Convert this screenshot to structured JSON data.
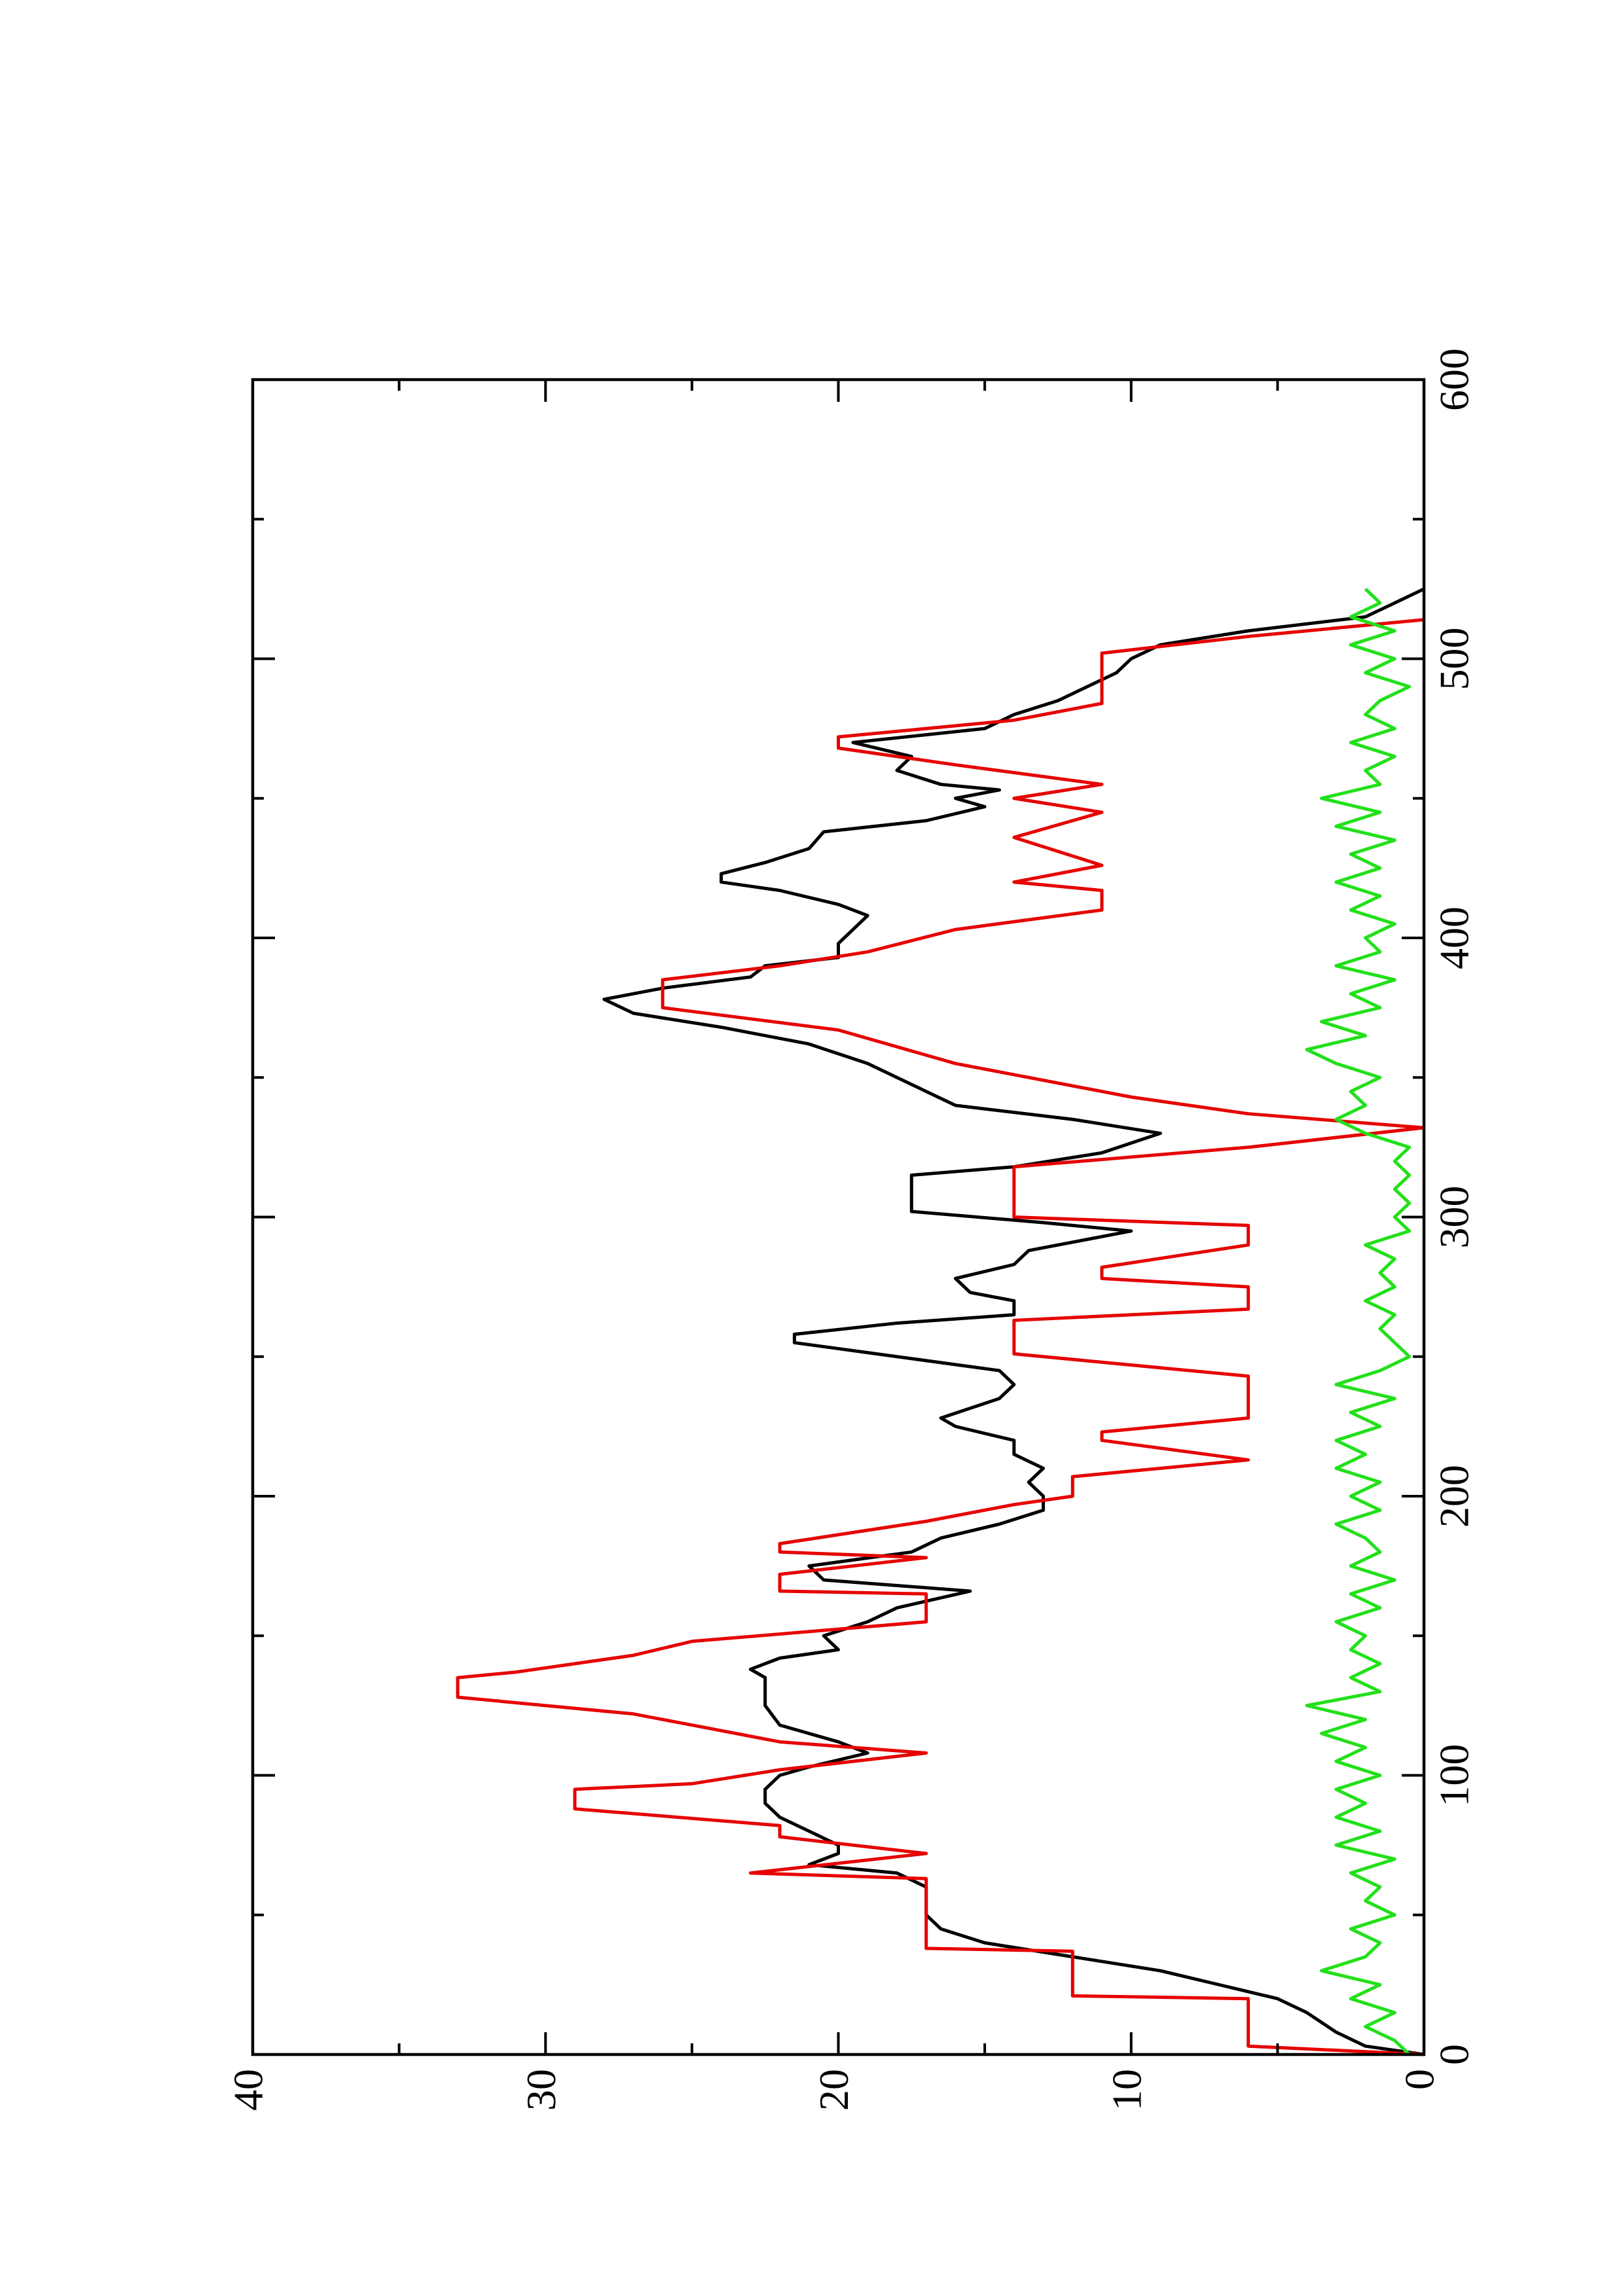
{
  "chart_data": {
    "type": "line",
    "xlim": [
      0,
      600
    ],
    "xticks": [
      0,
      100,
      200,
      300,
      400,
      500,
      600
    ],
    "ylim": [
      0,
      40
    ],
    "yticks": [
      0,
      10,
      20,
      30,
      40
    ],
    "rotated": true,
    "series": [
      {
        "color": "#000000",
        "x": [
          0,
          3,
          8,
          15,
          20,
          25,
          30,
          35,
          40,
          45,
          50,
          60,
          65,
          68,
          72,
          75,
          80,
          85,
          90,
          95,
          100,
          103,
          108,
          112,
          118,
          125,
          130,
          135,
          138,
          142,
          145,
          150,
          155,
          160,
          166,
          168,
          170,
          175,
          180,
          185,
          190,
          195,
          200,
          205,
          210,
          215,
          220,
          225,
          228,
          235,
          240,
          245,
          250,
          255,
          258,
          262,
          265,
          270,
          273,
          278,
          283,
          288,
          292,
          295,
          298,
          302,
          310,
          315,
          318,
          323,
          330,
          335,
          340,
          345,
          355,
          362,
          368,
          373,
          378,
          382,
          386,
          390,
          393,
          398,
          403,
          408,
          412,
          417,
          420,
          423,
          427,
          432,
          438,
          442,
          447,
          450,
          453,
          455,
          460,
          465,
          470,
          475,
          480,
          485,
          490,
          495,
          500,
          505,
          510,
          515,
          520,
          525
        ],
        "values": [
          0,
          2,
          3,
          4,
          5,
          7,
          9,
          12,
          15,
          16.5,
          17,
          17,
          18,
          21,
          20,
          20,
          21,
          22,
          22.5,
          22.5,
          22,
          21,
          19,
          20,
          22,
          22.5,
          22.5,
          22.5,
          23,
          22,
          20,
          20.5,
          19,
          18,
          15.5,
          18,
          20.5,
          21,
          17.5,
          16.5,
          14.5,
          13,
          13,
          13.5,
          13,
          14,
          14,
          16,
          16.5,
          14.5,
          14,
          14.5,
          18,
          21.5,
          21.5,
          18,
          14,
          14,
          15.5,
          16,
          14,
          13.5,
          11.5,
          10,
          13,
          17.5,
          17.5,
          17.5,
          14,
          11,
          9,
          12,
          16,
          17,
          19,
          21,
          24,
          27,
          28,
          26,
          23,
          22.5,
          20,
          20,
          19.5,
          19,
          20,
          22,
          24,
          24,
          22.5,
          21,
          20.5,
          17,
          15,
          16,
          14.5,
          16.5,
          18,
          17.5,
          19.5,
          15,
          14,
          12.5,
          11.5,
          10.5,
          10,
          9,
          6,
          2,
          1,
          0
        ]
      },
      {
        "color": "#e60000",
        "x": [
          0,
          3,
          20,
          21,
          37,
          38,
          63,
          65,
          72,
          78,
          82,
          88,
          95,
          97,
          102,
          108,
          112,
          118,
          122,
          128,
          135,
          137,
          143,
          148,
          155,
          165,
          166,
          172,
          178,
          180,
          183,
          191,
          197,
          200,
          207,
          213,
          220,
          223,
          228,
          243,
          251,
          263,
          267,
          275,
          278,
          282,
          290,
          297,
          300,
          318,
          325,
          332,
          337,
          343,
          355,
          367,
          375,
          385,
          390,
          395,
          403,
          410,
          417,
          420,
          426,
          436,
          445,
          450,
          455,
          462,
          468,
          472,
          478,
          484,
          500,
          502,
          508,
          514
        ],
        "values": [
          0,
          6,
          6,
          12,
          12,
          17,
          17,
          23,
          17,
          22,
          22,
          29,
          29,
          25,
          22,
          17,
          22,
          25,
          27,
          33,
          33,
          31,
          27,
          25,
          17,
          17,
          22,
          22,
          17,
          22,
          22,
          17,
          14,
          12,
          12,
          6,
          11,
          11,
          6,
          6,
          14,
          14,
          6,
          6,
          11,
          11,
          6,
          6,
          14,
          14,
          6,
          0,
          6,
          10,
          16,
          20,
          26,
          26,
          22,
          19,
          16,
          11,
          11,
          14,
          11,
          14,
          11,
          14,
          11,
          16,
          20,
          20,
          14,
          11,
          11,
          11,
          6,
          0
        ]
      },
      {
        "color": "#22e01a",
        "x": [
          0,
          5,
          10,
          15,
          20,
          25,
          30,
          35,
          40,
          45,
          50,
          55,
          60,
          65,
          70,
          75,
          80,
          85,
          90,
          95,
          100,
          105,
          110,
          115,
          120,
          125,
          130,
          135,
          140,
          145,
          150,
          155,
          160,
          165,
          170,
          175,
          180,
          185,
          190,
          195,
          200,
          205,
          210,
          215,
          220,
          225,
          230,
          235,
          240,
          245,
          250,
          255,
          260,
          265,
          270,
          275,
          280,
          285,
          290,
          295,
          300,
          305,
          310,
          315,
          320,
          325,
          330,
          335,
          340,
          345,
          350,
          355,
          360,
          365,
          370,
          375,
          380,
          385,
          390,
          395,
          400,
          405,
          410,
          415,
          420,
          425,
          430,
          435,
          440,
          445,
          450,
          455,
          460,
          465,
          470,
          475,
          480,
          485,
          490,
          495,
          500,
          505,
          510,
          515,
          520,
          525
        ],
        "values": [
          0.5,
          1,
          2,
          1,
          2.5,
          1.5,
          3.5,
          2,
          1.5,
          2.5,
          1,
          2,
          1.5,
          2.5,
          1,
          3,
          1.5,
          3,
          2,
          3,
          1.5,
          3,
          2,
          3.5,
          2,
          4,
          1.5,
          2.5,
          1.5,
          2.5,
          2,
          3,
          1.5,
          2.5,
          1,
          2.5,
          1.5,
          2,
          3,
          1.5,
          2.5,
          1.5,
          3,
          2,
          3,
          1.5,
          2.5,
          1,
          3,
          1.5,
          0.5,
          1,
          1.5,
          1,
          2,
          1,
          1.5,
          1,
          2,
          0.5,
          1,
          0.5,
          1,
          0.5,
          1,
          0.5,
          2,
          3,
          2,
          2.5,
          1.5,
          3,
          4,
          2,
          3.5,
          1.5,
          2.5,
          1,
          3,
          1.5,
          2,
          1,
          2.5,
          1.5,
          3,
          1.5,
          2.5,
          1,
          3,
          1.5,
          3.5,
          1.5,
          2,
          1,
          2.5,
          1,
          2,
          1.5,
          0.5,
          2,
          1,
          2.5,
          1,
          2.5,
          1.5,
          2
        ]
      }
    ]
  }
}
